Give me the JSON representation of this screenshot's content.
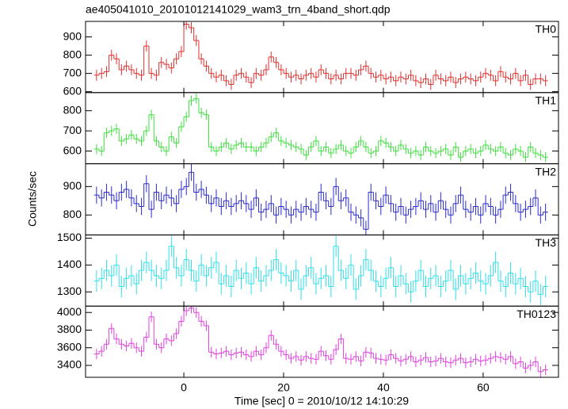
{
  "chart_data": {
    "type": "step",
    "title": "ae405041010_20101012141029_wam3_trn_4band_short.qdp",
    "xlabel": "Time [sec] 0 = 2010/10/12 14:10:29",
    "ylabel": "Counts/sec",
    "xlim": [
      -19.7,
      75.1
    ],
    "xticks": [
      0,
      20,
      40,
      60
    ],
    "x": [
      -17.5,
      -16.5,
      -15.5,
      -14.5,
      -13.5,
      -12.5,
      -11.5,
      -10.5,
      -9.5,
      -8.5,
      -7.5,
      -6.5,
      -5.5,
      -4.5,
      -3.5,
      -2.5,
      -1.5,
      -0.5,
      0.5,
      1.5,
      2.5,
      3.5,
      4.5,
      5.5,
      6.5,
      7.5,
      8.5,
      9.5,
      10.5,
      11.5,
      12.5,
      13.5,
      14.5,
      15.5,
      16.5,
      17.5,
      18.5,
      19.5,
      20.5,
      21.5,
      22.5,
      23.5,
      24.5,
      25.5,
      26.5,
      27.5,
      28.5,
      29.5,
      30.5,
      31.5,
      32.5,
      33.5,
      34.5,
      35.5,
      36.5,
      37.5,
      38.5,
      39.5,
      40.5,
      41.5,
      42.5,
      43.5,
      44.5,
      45.5,
      46.5,
      47.5,
      48.5,
      49.5,
      50.5,
      51.5,
      52.5,
      53.5,
      54.5,
      55.5,
      56.5,
      57.5,
      58.5,
      59.5,
      60.5,
      61.5,
      62.5,
      63.5,
      64.5,
      65.5,
      66.5,
      67.5,
      68.5,
      69.5,
      70.5,
      71.5,
      72.5
    ],
    "panels": [
      {
        "name": "TH0",
        "color": "#e0302e",
        "error": 30,
        "ylim": [
          595,
          985
        ],
        "yticks": [
          600,
          700,
          800,
          900
        ],
        "values": [
          690,
          700,
          710,
          800,
          780,
          720,
          740,
          720,
          700,
          690,
          850,
          700,
          690,
          760,
          750,
          730,
          780,
          820,
          970,
          950,
          880,
          780,
          740,
          700,
          680,
          690,
          660,
          640,
          690,
          700,
          680,
          650,
          700,
          690,
          720,
          790,
          760,
          720,
          700,
          680,
          690,
          670,
          690,
          700,
          680,
          720,
          700,
          670,
          690,
          670,
          700,
          700,
          690,
          720,
          740,
          700,
          680,
          690,
          670,
          680,
          660,
          680,
          670,
          690,
          660,
          650,
          670,
          640,
          690,
          670,
          660,
          680,
          650,
          670,
          680,
          670,
          660,
          680,
          700,
          690,
          660,
          710,
          680,
          670,
          700,
          660,
          690,
          640,
          670,
          670,
          660
        ]
      },
      {
        "name": "TH1",
        "color": "#3ce03c",
        "error": 25,
        "ylim": [
          537,
          890
        ],
        "yticks": [
          600,
          700,
          800
        ],
        "values": [
          610,
          600,
          690,
          700,
          710,
          650,
          660,
          680,
          660,
          650,
          700,
          780,
          650,
          620,
          600,
          670,
          640,
          720,
          770,
          850,
          860,
          790,
          780,
          620,
          600,
          620,
          640,
          610,
          630,
          640,
          620,
          620,
          600,
          620,
          640,
          670,
          690,
          650,
          640,
          630,
          620,
          610,
          580,
          620,
          650,
          600,
          620,
          590,
          610,
          630,
          600,
          590,
          620,
          650,
          620,
          590,
          600,
          650,
          640,
          620,
          600,
          630,
          610,
          590,
          600,
          580,
          620,
          600,
          590,
          600,
          610,
          580,
          620,
          570,
          600,
          610,
          590,
          600,
          630,
          610,
          600,
          620,
          590,
          580,
          610,
          600,
          570,
          620,
          590,
          580,
          570
        ]
      },
      {
        "name": "TH2",
        "color": "#2b2bd0",
        "error": 30,
        "ylim": [
          730,
          980
        ],
        "yticks": [
          800,
          900
        ],
        "values": [
          870,
          860,
          880,
          870,
          850,
          880,
          890,
          860,
          840,
          830,
          910,
          820,
          880,
          850,
          870,
          860,
          840,
          890,
          900,
          950,
          880,
          890,
          870,
          840,
          860,
          830,
          850,
          830,
          840,
          850,
          840,
          820,
          860,
          810,
          820,
          840,
          800,
          830,
          820,
          800,
          820,
          810,
          830,
          820,
          810,
          880,
          850,
          830,
          900,
          850,
          860,
          810,
          800,
          790,
          750,
          880,
          850,
          830,
          870,
          840,
          810,
          830,
          800,
          820,
          830,
          850,
          820,
          840,
          810,
          850,
          820,
          800,
          840,
          870,
          820,
          810,
          830,
          800,
          840,
          830,
          800,
          820,
          870,
          880,
          840,
          810,
          820,
          830,
          860,
          800,
          810
        ]
      },
      {
        "name": "TH3",
        "color": "#30e0e8",
        "error": 40,
        "ylim": [
          1247,
          1512
        ],
        "yticks": [
          1300,
          1400,
          1500
        ],
        "values": [
          1340,
          1350,
          1380,
          1360,
          1400,
          1320,
          1350,
          1360,
          1330,
          1380,
          1410,
          1380,
          1360,
          1350,
          1380,
          1470,
          1390,
          1360,
          1420,
          1380,
          1340,
          1400,
          1360,
          1390,
          1410,
          1330,
          1360,
          1320,
          1380,
          1350,
          1370,
          1330,
          1390,
          1340,
          1360,
          1380,
          1420,
          1370,
          1360,
          1340,
          1380,
          1310,
          1360,
          1390,
          1330,
          1350,
          1360,
          1320,
          1470,
          1380,
          1350,
          1400,
          1310,
          1360,
          1420,
          1380,
          1340,
          1320,
          1350,
          1390,
          1320,
          1360,
          1330,
          1300,
          1340,
          1380,
          1320,
          1350,
          1360,
          1320,
          1340,
          1380,
          1310,
          1360,
          1330,
          1350,
          1370,
          1340,
          1330,
          1360,
          1410,
          1340,
          1320,
          1370,
          1330,
          1350,
          1320,
          1300,
          1340,
          1290,
          1320
        ]
      },
      {
        "name": "TH0123",
        "color": "#e040e0",
        "error": 60,
        "ylim": [
          3265,
          4072
        ],
        "yticks": [
          3400,
          3600,
          3800,
          4000
        ],
        "values": [
          3530,
          3560,
          3640,
          3820,
          3700,
          3640,
          3620,
          3650,
          3600,
          3560,
          3720,
          3950,
          3640,
          3600,
          3700,
          3680,
          3760,
          3900,
          4020,
          4050,
          4000,
          3900,
          3850,
          3550,
          3530,
          3540,
          3560,
          3520,
          3540,
          3550,
          3520,
          3500,
          3560,
          3520,
          3600,
          3740,
          3640,
          3560,
          3520,
          3480,
          3500,
          3460,
          3500,
          3480,
          3470,
          3560,
          3510,
          3470,
          3580,
          3700,
          3480,
          3470,
          3500,
          3450,
          3550,
          3540,
          3480,
          3470,
          3460,
          3520,
          3480,
          3450,
          3470,
          3500,
          3440,
          3460,
          3490,
          3440,
          3450,
          3480,
          3440,
          3430,
          3460,
          3480,
          3430,
          3440,
          3470,
          3450,
          3460,
          3480,
          3500,
          3490,
          3470,
          3500,
          3420,
          3440,
          3370,
          3400,
          3440,
          3330,
          3350
        ]
      }
    ]
  }
}
